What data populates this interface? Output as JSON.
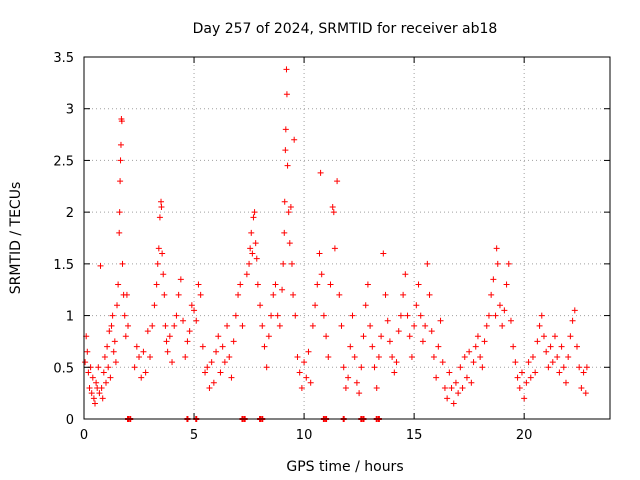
{
  "chart_data": {
    "type": "scatter",
    "title": "Day 257 of 2024, SRMTID for receiver ab18",
    "xlabel": "GPS time / hours",
    "ylabel": "SRMTID / TECUs",
    "xlim": [
      0,
      23.9
    ],
    "ylim": [
      0,
      3.5
    ],
    "grid": true,
    "marker": "+",
    "color": "#ff0000",
    "x_ticks": [
      {
        "value": 0,
        "label": "0"
      },
      {
        "value": 5,
        "label": "5"
      },
      {
        "value": 10,
        "label": "10"
      },
      {
        "value": 15,
        "label": "15"
      },
      {
        "value": 20,
        "label": "20"
      }
    ],
    "y_ticks": [
      {
        "value": 0,
        "label": "0"
      },
      {
        "value": 0.5,
        "label": "0.5"
      },
      {
        "value": 1,
        "label": "1"
      },
      {
        "value": 1.5,
        "label": "1.5"
      },
      {
        "value": 2,
        "label": "2"
      },
      {
        "value": 2.5,
        "label": "2.5"
      },
      {
        "value": 3,
        "label": "3"
      },
      {
        "value": 3.5,
        "label": "3.5"
      }
    ],
    "series": [
      {
        "name": "SRMTID",
        "points": [
          [
            0.05,
            0.55
          ],
          [
            0.1,
            0.8
          ],
          [
            0.15,
            0.65
          ],
          [
            0.2,
            0.45
          ],
          [
            0.25,
            0.3
          ],
          [
            0.3,
            0.5
          ],
          [
            0.35,
            0.25
          ],
          [
            0.4,
            0.4
          ],
          [
            0.45,
            0.2
          ],
          [
            0.5,
            0.15
          ],
          [
            0.55,
            0.35
          ],
          [
            0.6,
            0.3
          ],
          [
            0.65,
            0.5
          ],
          [
            0.7,
            0.25
          ],
          [
            0.75,
            1.48
          ],
          [
            0.8,
            0.3
          ],
          [
            0.85,
            0.2
          ],
          [
            0.9,
            0.45
          ],
          [
            0.95,
            0.6
          ],
          [
            1.0,
            0.35
          ],
          [
            1.05,
            0.7
          ],
          [
            1.1,
            0.5
          ],
          [
            1.15,
            0.85
          ],
          [
            1.2,
            0.4
          ],
          [
            1.25,
            0.9
          ],
          [
            1.3,
            1.0
          ],
          [
            1.35,
            0.65
          ],
          [
            1.4,
            0.75
          ],
          [
            1.45,
            0.55
          ],
          [
            1.5,
            1.1
          ],
          [
            1.55,
            1.3
          ],
          [
            1.6,
            1.8
          ],
          [
            1.62,
            2.0
          ],
          [
            1.64,
            2.3
          ],
          [
            1.66,
            2.5
          ],
          [
            1.68,
            2.65
          ],
          [
            1.7,
            2.9
          ],
          [
            1.72,
            2.88
          ],
          [
            1.75,
            1.5
          ],
          [
            1.8,
            1.2
          ],
          [
            1.85,
            1.0
          ],
          [
            1.9,
            0.8
          ],
          [
            1.95,
            1.2
          ],
          [
            2.0,
            0.9
          ],
          [
            2.3,
            0.5
          ],
          [
            2.4,
            0.7
          ],
          [
            2.5,
            0.6
          ],
          [
            2.6,
            0.4
          ],
          [
            2.7,
            0.65
          ],
          [
            2.8,
            0.45
          ],
          [
            2.9,
            0.85
          ],
          [
            3.0,
            0.6
          ],
          [
            3.1,
            0.9
          ],
          [
            3.2,
            1.1
          ],
          [
            3.3,
            1.3
          ],
          [
            3.35,
            1.5
          ],
          [
            3.4,
            1.65
          ],
          [
            3.45,
            1.95
          ],
          [
            3.5,
            2.1
          ],
          [
            3.52,
            2.05
          ],
          [
            3.55,
            1.6
          ],
          [
            3.6,
            1.4
          ],
          [
            3.65,
            1.2
          ],
          [
            3.7,
            0.9
          ],
          [
            3.75,
            0.75
          ],
          [
            3.8,
            0.65
          ],
          [
            3.9,
            0.8
          ],
          [
            4.0,
            0.55
          ],
          [
            4.1,
            0.9
          ],
          [
            4.2,
            1.0
          ],
          [
            4.3,
            1.2
          ],
          [
            4.4,
            1.35
          ],
          [
            4.5,
            0.95
          ],
          [
            4.6,
            0.6
          ],
          [
            4.7,
            0.75
          ],
          [
            4.8,
            0.85
          ],
          [
            4.9,
            1.1
          ],
          [
            5.0,
            1.05
          ],
          [
            5.1,
            0.95
          ],
          [
            5.2,
            1.3
          ],
          [
            5.3,
            1.2
          ],
          [
            5.4,
            0.7
          ],
          [
            5.5,
            0.45
          ],
          [
            5.6,
            0.5
          ],
          [
            5.7,
            0.3
          ],
          [
            5.8,
            0.55
          ],
          [
            5.9,
            0.35
          ],
          [
            6.0,
            0.65
          ],
          [
            6.1,
            0.8
          ],
          [
            6.2,
            0.45
          ],
          [
            6.3,
            0.7
          ],
          [
            6.4,
            0.55
          ],
          [
            6.5,
            0.9
          ],
          [
            6.6,
            0.6
          ],
          [
            6.7,
            0.4
          ],
          [
            6.8,
            0.75
          ],
          [
            6.9,
            1.0
          ],
          [
            7.0,
            1.2
          ],
          [
            7.1,
            1.3
          ],
          [
            7.2,
            0.9
          ],
          [
            7.4,
            1.4
          ],
          [
            7.5,
            1.5
          ],
          [
            7.55,
            1.65
          ],
          [
            7.6,
            1.8
          ],
          [
            7.65,
            1.6
          ],
          [
            7.7,
            1.95
          ],
          [
            7.75,
            2.0
          ],
          [
            7.8,
            1.7
          ],
          [
            7.85,
            1.55
          ],
          [
            7.9,
            1.3
          ],
          [
            8.0,
            1.1
          ],
          [
            8.1,
            0.9
          ],
          [
            8.2,
            0.7
          ],
          [
            8.3,
            0.5
          ],
          [
            8.4,
            0.8
          ],
          [
            8.5,
            1.0
          ],
          [
            8.6,
            1.2
          ],
          [
            8.7,
            1.3
          ],
          [
            8.8,
            1.0
          ],
          [
            8.9,
            0.9
          ],
          [
            9.0,
            1.25
          ],
          [
            9.05,
            1.5
          ],
          [
            9.1,
            1.8
          ],
          [
            9.12,
            2.1
          ],
          [
            9.15,
            2.6
          ],
          [
            9.17,
            2.8
          ],
          [
            9.2,
            3.38
          ],
          [
            9.22,
            3.14
          ],
          [
            9.25,
            2.45
          ],
          [
            9.3,
            2.0
          ],
          [
            9.35,
            1.7
          ],
          [
            9.4,
            2.05
          ],
          [
            9.45,
            1.5
          ],
          [
            9.5,
            1.2
          ],
          [
            9.55,
            2.7
          ],
          [
            9.6,
            1.0
          ],
          [
            9.7,
            0.6
          ],
          [
            9.8,
            0.45
          ],
          [
            9.9,
            0.3
          ],
          [
            10.0,
            0.55
          ],
          [
            10.1,
            0.4
          ],
          [
            10.2,
            0.65
          ],
          [
            10.3,
            0.35
          ],
          [
            10.4,
            0.9
          ],
          [
            10.5,
            1.1
          ],
          [
            10.6,
            1.3
          ],
          [
            10.7,
            1.6
          ],
          [
            10.75,
            2.38
          ],
          [
            10.8,
            1.4
          ],
          [
            10.9,
            1.0
          ],
          [
            11.0,
            0.8
          ],
          [
            11.1,
            0.6
          ],
          [
            11.2,
            1.3
          ],
          [
            11.3,
            2.05
          ],
          [
            11.35,
            2.0
          ],
          [
            11.4,
            1.65
          ],
          [
            11.5,
            2.3
          ],
          [
            11.6,
            1.2
          ],
          [
            11.7,
            0.9
          ],
          [
            11.8,
            0.5
          ],
          [
            11.9,
            0.3
          ],
          [
            12.0,
            0.4
          ],
          [
            12.1,
            0.7
          ],
          [
            12.2,
            1.0
          ],
          [
            12.3,
            0.6
          ],
          [
            12.4,
            0.35
          ],
          [
            12.5,
            0.25
          ],
          [
            12.6,
            0.5
          ],
          [
            12.7,
            0.8
          ],
          [
            12.8,
            1.1
          ],
          [
            12.9,
            1.3
          ],
          [
            13.0,
            0.9
          ],
          [
            13.1,
            0.7
          ],
          [
            13.2,
            0.5
          ],
          [
            13.3,
            0.3
          ],
          [
            13.4,
            0.6
          ],
          [
            13.5,
            0.8
          ],
          [
            13.6,
            1.6
          ],
          [
            13.7,
            1.2
          ],
          [
            13.8,
            0.95
          ],
          [
            13.9,
            0.75
          ],
          [
            14.0,
            0.6
          ],
          [
            14.1,
            0.45
          ],
          [
            14.2,
            0.55
          ],
          [
            14.3,
            0.85
          ],
          [
            14.4,
            1.0
          ],
          [
            14.5,
            1.2
          ],
          [
            14.6,
            1.4
          ],
          [
            14.7,
            1.0
          ],
          [
            14.8,
            0.8
          ],
          [
            14.9,
            0.6
          ],
          [
            15.0,
            0.9
          ],
          [
            15.1,
            1.1
          ],
          [
            15.2,
            1.3
          ],
          [
            15.3,
            1.0
          ],
          [
            15.4,
            0.75
          ],
          [
            15.5,
            0.9
          ],
          [
            15.6,
            1.5
          ],
          [
            15.7,
            1.2
          ],
          [
            15.8,
            0.85
          ],
          [
            15.9,
            0.6
          ],
          [
            16.0,
            0.4
          ],
          [
            16.1,
            0.7
          ],
          [
            16.2,
            0.95
          ],
          [
            16.3,
            0.55
          ],
          [
            16.4,
            0.3
          ],
          [
            16.5,
            0.2
          ],
          [
            16.6,
            0.45
          ],
          [
            16.7,
            0.3
          ],
          [
            16.8,
            0.15
          ],
          [
            16.9,
            0.35
          ],
          [
            17.0,
            0.25
          ],
          [
            17.1,
            0.5
          ],
          [
            17.2,
            0.3
          ],
          [
            17.3,
            0.6
          ],
          [
            17.4,
            0.4
          ],
          [
            17.5,
            0.65
          ],
          [
            17.6,
            0.35
          ],
          [
            17.7,
            0.55
          ],
          [
            17.8,
            0.7
          ],
          [
            17.9,
            0.8
          ],
          [
            18.0,
            0.6
          ],
          [
            18.1,
            0.5
          ],
          [
            18.2,
            0.75
          ],
          [
            18.3,
            0.9
          ],
          [
            18.4,
            1.0
          ],
          [
            18.5,
            1.2
          ],
          [
            18.6,
            1.35
          ],
          [
            18.7,
            1.0
          ],
          [
            18.75,
            1.65
          ],
          [
            18.8,
            1.5
          ],
          [
            18.9,
            1.1
          ],
          [
            19.0,
            0.9
          ],
          [
            19.1,
            1.05
          ],
          [
            19.2,
            1.3
          ],
          [
            19.3,
            1.5
          ],
          [
            19.4,
            0.95
          ],
          [
            19.5,
            0.7
          ],
          [
            19.6,
            0.55
          ],
          [
            19.7,
            0.4
          ],
          [
            19.8,
            0.3
          ],
          [
            19.9,
            0.45
          ],
          [
            20.0,
            0.2
          ],
          [
            20.1,
            0.35
          ],
          [
            20.2,
            0.55
          ],
          [
            20.3,
            0.4
          ],
          [
            20.4,
            0.6
          ],
          [
            20.5,
            0.45
          ],
          [
            20.6,
            0.75
          ],
          [
            20.7,
            0.9
          ],
          [
            20.8,
            1.0
          ],
          [
            20.9,
            0.8
          ],
          [
            21.0,
            0.65
          ],
          [
            21.1,
            0.5
          ],
          [
            21.2,
            0.7
          ],
          [
            21.3,
            0.55
          ],
          [
            21.4,
            0.8
          ],
          [
            21.5,
            0.6
          ],
          [
            21.6,
            0.45
          ],
          [
            21.7,
            0.7
          ],
          [
            21.8,
            0.5
          ],
          [
            21.9,
            0.35
          ],
          [
            22.0,
            0.6
          ],
          [
            22.1,
            0.8
          ],
          [
            22.2,
            0.95
          ],
          [
            22.3,
            1.05
          ],
          [
            22.4,
            0.7
          ],
          [
            22.5,
            0.5
          ],
          [
            22.6,
            0.3
          ],
          [
            22.7,
            0.45
          ],
          [
            22.8,
            0.25
          ],
          [
            22.85,
            0.5
          ]
        ],
        "zero_markers": [
          2.0,
          2.1,
          4.7,
          5.1,
          7.2,
          7.3,
          8.0,
          8.1,
          10.9,
          11.0,
          11.8,
          12.6,
          12.7,
          13.3,
          13.4
        ]
      }
    ]
  }
}
